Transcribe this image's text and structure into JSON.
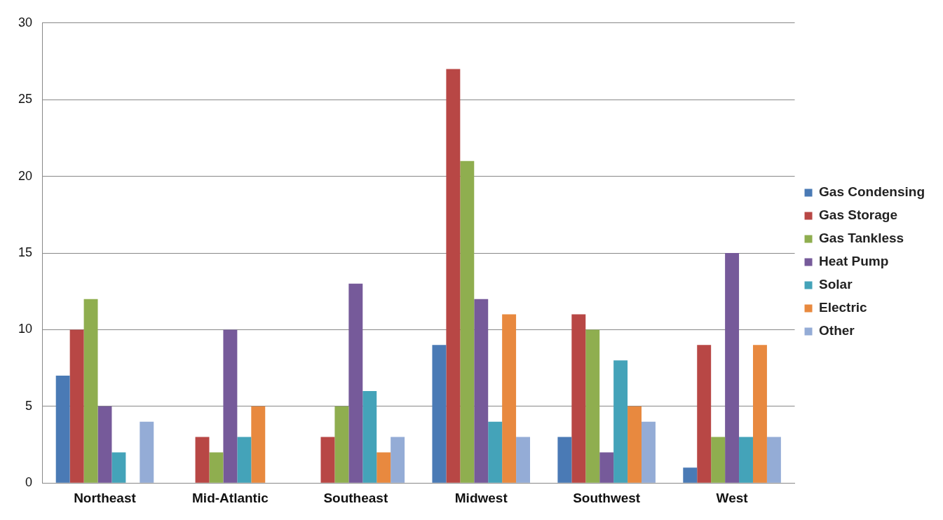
{
  "chart_data": {
    "type": "bar",
    "categories": [
      "Northeast",
      "Mid-Atlantic",
      "Southeast",
      "Midwest",
      "Southwest",
      "West"
    ],
    "series": [
      {
        "name": "Gas Condensing",
        "color": "#4a7ab5",
        "values": [
          7,
          0,
          0,
          9,
          3,
          1
        ]
      },
      {
        "name": "Gas Storage",
        "color": "#b84745",
        "values": [
          10,
          3,
          3,
          27,
          11,
          9
        ]
      },
      {
        "name": "Gas Tankless",
        "color": "#8fae4f",
        "values": [
          12,
          2,
          5,
          21,
          10,
          3
        ]
      },
      {
        "name": "Heat Pump",
        "color": "#765a9a",
        "values": [
          5,
          10,
          13,
          12,
          2,
          15
        ]
      },
      {
        "name": "Solar",
        "color": "#44a3b9",
        "values": [
          2,
          3,
          6,
          4,
          8,
          3
        ]
      },
      {
        "name": "Electric",
        "color": "#e8893f",
        "values": [
          0,
          5,
          2,
          11,
          5,
          9
        ]
      },
      {
        "name": "Other",
        "color": "#94acd6",
        "values": [
          4,
          0,
          3,
          3,
          4,
          3
        ]
      }
    ],
    "ylim": [
      0,
      30
    ],
    "yticks": [
      0,
      5,
      10,
      15,
      20,
      25,
      30
    ],
    "grid": "y",
    "legend": "right"
  }
}
